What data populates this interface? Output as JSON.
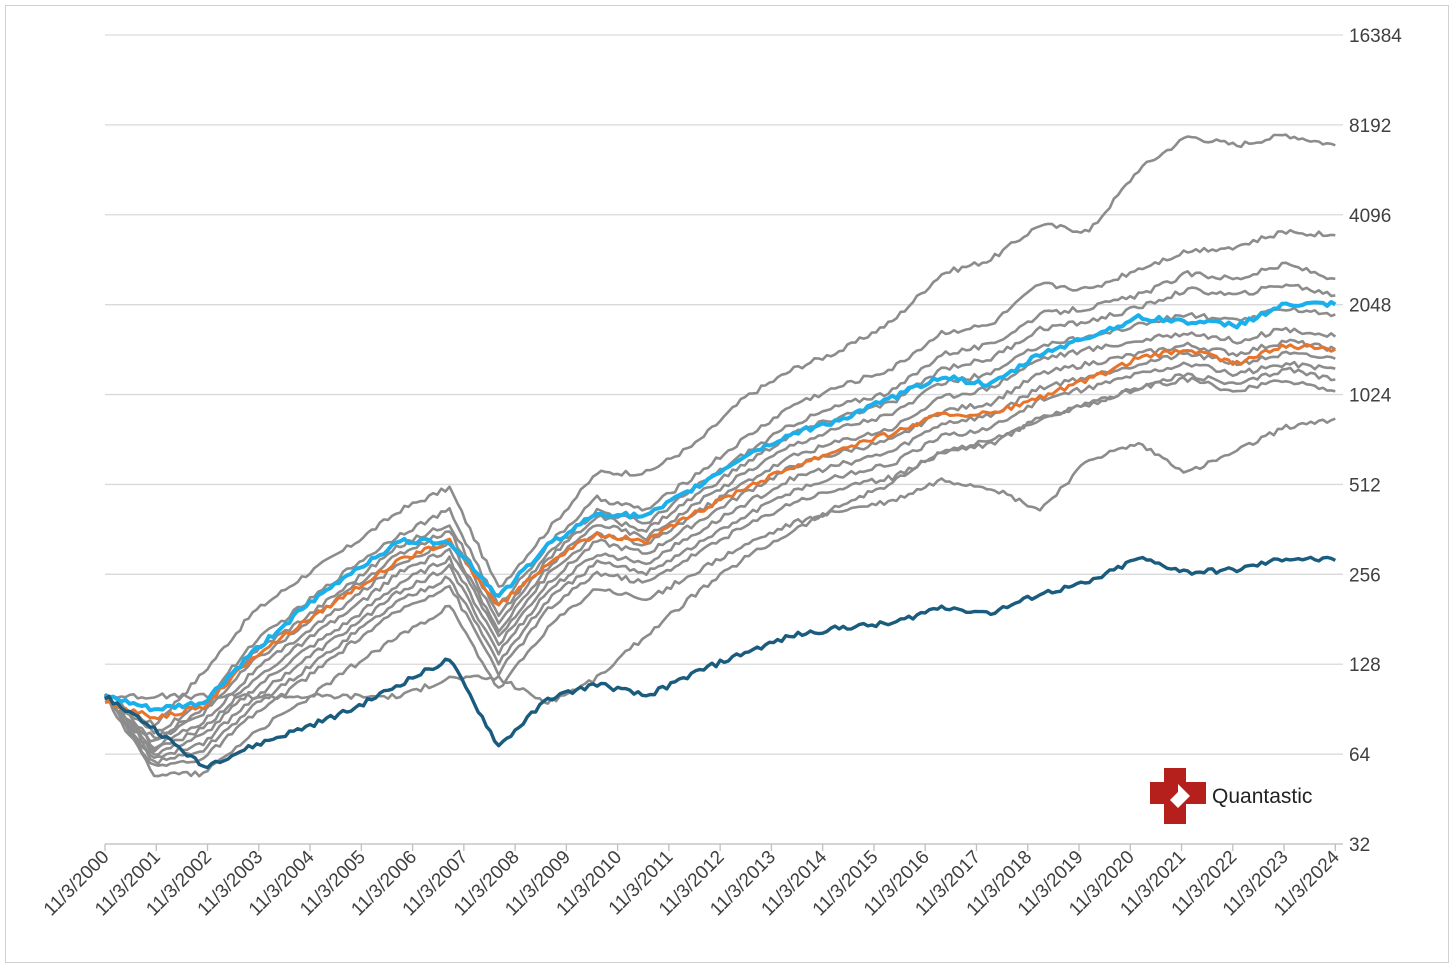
{
  "logo": {
    "text": "Quantastic",
    "color": "#b5201c"
  },
  "chart_data": {
    "type": "line",
    "title": "",
    "xlabel": "",
    "ylabel": "",
    "y_scale": "log2",
    "y_axis_position": "right",
    "ylim": [
      32,
      16384
    ],
    "y_ticks": [
      32,
      64,
      128,
      256,
      512,
      1024,
      2048,
      4096,
      8192,
      16384
    ],
    "x_ticks": [
      "11/3/2000",
      "11/3/2001",
      "11/3/2002",
      "11/3/2003",
      "11/3/2004",
      "11/3/2005",
      "11/3/2006",
      "11/3/2007",
      "11/3/2008",
      "11/3/2009",
      "11/3/2010",
      "11/3/2011",
      "11/3/2012",
      "11/3/2013",
      "11/3/2014",
      "11/3/2015",
      "11/3/2016",
      "11/3/2017",
      "11/3/2018",
      "11/3/2019",
      "11/3/2020",
      "11/3/2021",
      "11/3/2022",
      "11/3/2023",
      "11/3/2024"
    ],
    "grid": true,
    "legend": "none",
    "colors": {
      "gray": "#8c8c8c",
      "light_blue": "#1ab0ec",
      "orange": "#e8742c",
      "dark_blue": "#1a5c7e"
    },
    "series": [
      {
        "color": "gray",
        "values": [
          100,
          80,
          120,
          190,
          250,
          320,
          420,
          500,
          230,
          360,
          560,
          560,
          700,
          1000,
          1250,
          1450,
          1800,
          2600,
          2900,
          3800,
          3600,
          5800,
          7500,
          7000,
          7600,
          7000
        ]
      },
      {
        "color": "gray",
        "values": [
          100,
          75,
          95,
          150,
          200,
          270,
          350,
          420,
          200,
          320,
          460,
          420,
          550,
          730,
          950,
          1100,
          1250,
          1650,
          1750,
          2400,
          2300,
          2700,
          3100,
          3200,
          3600,
          3500
        ]
      },
      {
        "color": "gray",
        "values": [
          100,
          72,
          90,
          140,
          180,
          240,
          320,
          380,
          185,
          300,
          420,
          380,
          500,
          650,
          820,
          950,
          1050,
          1400,
          1500,
          1900,
          2000,
          2200,
          2600,
          2500,
          2800,
          2500
        ]
      },
      {
        "color": "gray",
        "values": [
          100,
          70,
          88,
          130,
          170,
          230,
          300,
          360,
          175,
          290,
          400,
          360,
          470,
          600,
          760,
          870,
          960,
          1250,
          1350,
          1700,
          1800,
          2000,
          2300,
          2200,
          2400,
          2200
        ]
      },
      {
        "color": "gray",
        "values": [
          100,
          68,
          82,
          120,
          160,
          210,
          280,
          330,
          165,
          270,
          380,
          340,
          440,
          560,
          700,
          800,
          880,
          1120,
          1200,
          1500,
          1600,
          1750,
          1900,
          1800,
          2000,
          1900
        ]
      },
      {
        "color": "gray",
        "values": [
          100,
          66,
          78,
          112,
          150,
          195,
          260,
          310,
          160,
          255,
          350,
          320,
          410,
          520,
          640,
          720,
          790,
          1000,
          1080,
          1350,
          1450,
          1550,
          1650,
          1550,
          1700,
          1600
        ]
      },
      {
        "color": "gray",
        "values": [
          100,
          64,
          74,
          105,
          140,
          180,
          240,
          290,
          150,
          240,
          330,
          300,
          380,
          480,
          590,
          660,
          720,
          900,
          960,
          1200,
          1300,
          1400,
          1500,
          1400,
          1550,
          1450
        ]
      },
      {
        "color": "gray",
        "values": [
          100,
          62,
          70,
          98,
          130,
          170,
          225,
          270,
          140,
          225,
          300,
          280,
          350,
          440,
          540,
          600,
          660,
          820,
          870,
          1080,
          1180,
          1300,
          1400,
          1300,
          1400,
          1350
        ]
      },
      {
        "color": "gray",
        "values": [
          100,
          60,
          66,
          92,
          120,
          160,
          210,
          250,
          130,
          210,
          280,
          260,
          320,
          400,
          490,
          550,
          600,
          740,
          790,
          980,
          1080,
          1200,
          1300,
          1200,
          1300,
          1250
        ]
      },
      {
        "color": "gray",
        "values": [
          100,
          58,
          62,
          86,
          112,
          150,
          195,
          235,
          120,
          195,
          260,
          240,
          300,
          370,
          450,
          500,
          540,
          660,
          700,
          850,
          950,
          1080,
          1150,
          1050,
          1150,
          1050
        ]
      },
      {
        "color": "gray",
        "values": [
          100,
          55,
          55,
          75,
          95,
          125,
          160,
          200,
          105,
          170,
          230,
          210,
          260,
          320,
          380,
          420,
          450,
          530,
          500,
          420,
          620,
          700,
          560,
          660,
          800,
          850
        ]
      },
      {
        "color": "gray",
        "values": [
          100,
          100,
          100,
          100,
          100,
          100,
          100,
          115,
          115,
          95,
          115,
          160,
          220,
          290,
          360,
          440,
          520,
          660,
          720,
          850,
          950,
          1080,
          1200,
          1100,
          1250,
          1150
        ]
      },
      {
        "color": "orange",
        "values": [
          95,
          85,
          92,
          135,
          175,
          225,
          285,
          330,
          200,
          280,
          350,
          330,
          410,
          500,
          590,
          680,
          760,
          880,
          880,
          1000,
          1150,
          1350,
          1450,
          1300,
          1500,
          1450
        ]
      },
      {
        "color": "light_blue",
        "values": [
          100,
          90,
          95,
          140,
          195,
          260,
          330,
          330,
          215,
          320,
          410,
          400,
          500,
          640,
          760,
          850,
          1000,
          1180,
          1100,
          1400,
          1600,
          1850,
          1800,
          1750,
          2050,
          2050
        ]
      },
      {
        "color": "dark_blue",
        "values": [
          100,
          78,
          58,
          68,
          78,
          90,
          110,
          133,
          68,
          98,
          110,
          100,
          120,
          140,
          160,
          170,
          175,
          200,
          190,
          220,
          240,
          290,
          260,
          265,
          290,
          285
        ]
      }
    ]
  }
}
